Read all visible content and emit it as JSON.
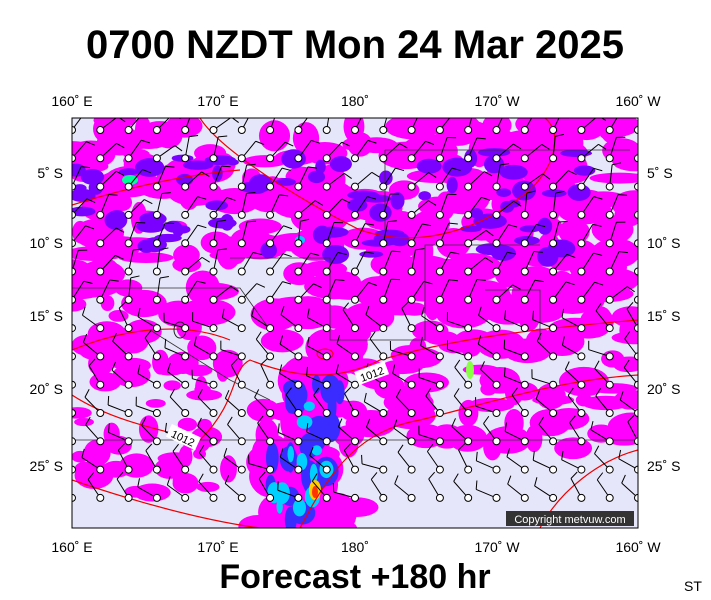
{
  "title": "0700 NZDT Mon 24 Mar 2025",
  "longitude_labels": [
    "160˚ E",
    "170˚ E",
    "180˚",
    "170˚ W",
    "160˚ W"
  ],
  "latitude_labels": [
    "5˚ S",
    "10˚ S",
    "15˚ S",
    "20˚ S",
    "25˚ S"
  ],
  "isobar_labels": [
    "1012",
    "1012"
  ],
  "copyright": "Copyright metvuw.com",
  "footer": "Forecast +180 hr",
  "corner_label": "ST"
}
